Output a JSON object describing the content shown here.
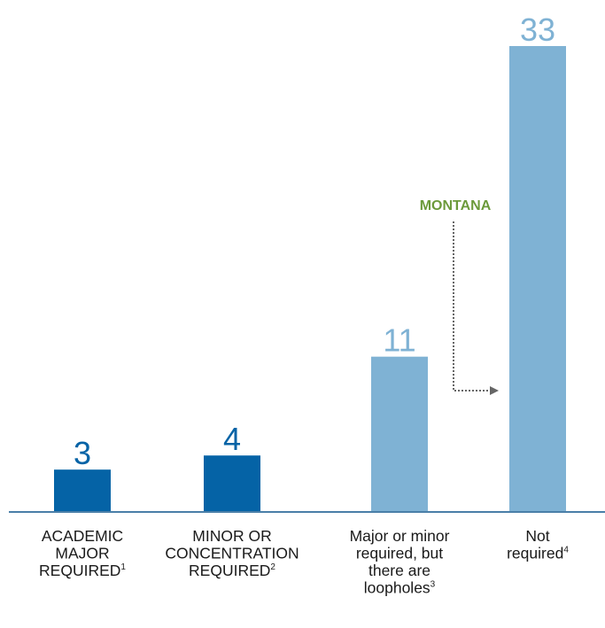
{
  "chart_data": {
    "type": "bar",
    "title": "",
    "xlabel": "",
    "ylabel": "",
    "ylim": [
      0,
      33
    ],
    "grid": false,
    "legend": "none",
    "categories": [
      {
        "lines": [
          [
            "ACADEMIC",
            ""
          ],
          [
            "MAJOR",
            ""
          ],
          [
            "REQUIRED",
            "1"
          ]
        ]
      },
      {
        "lines": [
          [
            "MINOR OR",
            ""
          ],
          [
            "CONCENTRATION",
            ""
          ],
          [
            "REQUIRED",
            "2"
          ]
        ]
      },
      {
        "lines": [
          [
            "Major or minor",
            ""
          ],
          [
            "required, but",
            ""
          ],
          [
            "there are",
            ""
          ],
          [
            "loopholes",
            "3"
          ]
        ]
      },
      {
        "lines": [
          [
            "Not",
            ""
          ],
          [
            "required",
            "4"
          ]
        ]
      }
    ],
    "values": [
      3,
      4,
      11,
      33
    ],
    "value_labels": [
      "3",
      "4",
      "11",
      "33"
    ],
    "colors": {
      "dark_blue": "#0563a6",
      "light_blue": "#7fb2d4",
      "axis": "#4a7fa8",
      "annotation_green": "#6c9a3b",
      "arrow_gray": "#666666",
      "label_text": "#1a1a1a"
    },
    "bar_colors": [
      "dark_blue",
      "dark_blue",
      "light_blue",
      "light_blue"
    ],
    "annotation": {
      "label": "MONTANA",
      "target_category_index": 3
    }
  }
}
